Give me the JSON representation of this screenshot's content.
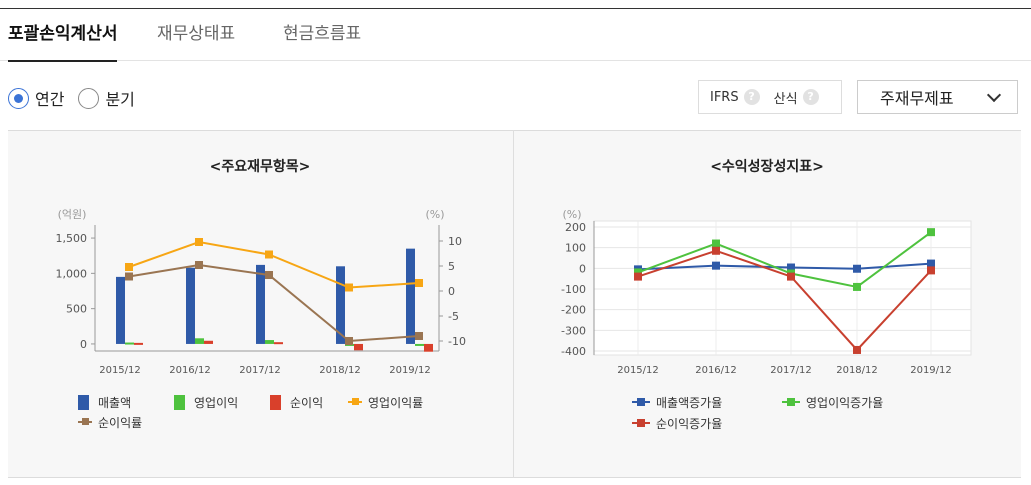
{
  "tabs": [
    {
      "label": "포괄손익계산서",
      "active": true
    },
    {
      "label": "재무상태표",
      "active": false
    },
    {
      "label": "현금흐름표",
      "active": false
    }
  ],
  "period_options": [
    {
      "label": "연간",
      "selected": true
    },
    {
      "label": "분기",
      "selected": false
    }
  ],
  "options": {
    "ifrs_label": "IFRS",
    "formula_label": "산식",
    "help_icon": "?"
  },
  "statement_select": {
    "value": "주재무제표"
  },
  "colors": {
    "sales": "#2f5aa8",
    "op_income": "#4ec23e",
    "net_income": "#d9402b",
    "op_margin": "#f7a614",
    "net_margin": "#9a7552",
    "growth_sales": "#2f5aa8",
    "growth_op": "#4ec23e",
    "growth_net": "#c8402f"
  },
  "chart_data": [
    {
      "type": "bar",
      "title": "<주요재무항목>",
      "left_unit": "(억원)",
      "right_unit": "(%)",
      "categories": [
        "2015/12",
        "2016/12",
        "2017/12",
        "2018/12",
        "2019/12"
      ],
      "ylim": [
        -100,
        1600
      ],
      "yticks": [
        0,
        500,
        1000,
        1500
      ],
      "ytick_labels": [
        "0",
        "500",
        "1,000",
        "1,500"
      ],
      "y2lim": [
        -12,
        12
      ],
      "y2ticks": [
        -10,
        -5,
        0,
        5,
        10
      ],
      "series": [
        {
          "name": "매출액",
          "kind": "bar",
          "values": [
            950,
            1080,
            1120,
            1100,
            1350
          ]
        },
        {
          "name": "영업이익",
          "kind": "bar",
          "values": [
            20,
            80,
            55,
            -15,
            0
          ]
        },
        {
          "name": "순이익",
          "kind": "bar",
          "values": [
            15,
            45,
            25,
            -90,
            -110
          ]
        },
        {
          "name": "영업이익률",
          "kind": "line",
          "axis": "right",
          "values": [
            4.8,
            9.8,
            7.3,
            0.7,
            1.6
          ]
        },
        {
          "name": "순이익률",
          "kind": "line",
          "axis": "right",
          "values": [
            2.9,
            5.2,
            3.2,
            -10.0,
            -9.0
          ]
        }
      ],
      "legend": "bottom"
    },
    {
      "type": "line",
      "title": "<수익성장성지표>",
      "unit": "(%)",
      "categories": [
        "2015/12",
        "2016/12",
        "2017/12",
        "2018/12",
        "2019/12"
      ],
      "ylim": [
        -400,
        200
      ],
      "yticks": [
        200,
        100,
        0,
        -100,
        -200,
        -300,
        -400
      ],
      "grid": true,
      "series": [
        {
          "name": "매출액증가율",
          "values": [
            -5,
            13,
            4,
            -2,
            23
          ]
        },
        {
          "name": "영업이익증가율",
          "values": [
            -20,
            120,
            -25,
            -90,
            175
          ]
        },
        {
          "name": "순이익증가율",
          "values": [
            -40,
            85,
            -40,
            -395,
            -10
          ]
        }
      ],
      "legend": "bottom"
    }
  ]
}
